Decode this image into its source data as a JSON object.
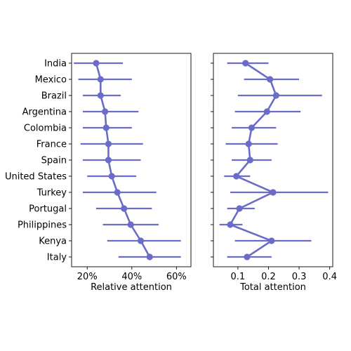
{
  "chart_data": [
    {
      "type": "line",
      "title": "",
      "xlabel": "Relative attention",
      "ylabel": "",
      "xlim": [
        0.13,
        0.665
      ],
      "xticks": [
        {
          "value": 0.2,
          "label": "20%"
        },
        {
          "value": 0.4,
          "label": "40%"
        },
        {
          "value": 0.6,
          "label": "60%"
        }
      ],
      "categories": [
        "India",
        "Mexico",
        "Brazil",
        "Argentina",
        "Colombia",
        "France",
        "Spain",
        "United States",
        "Turkey",
        "Portugal",
        "Philippines",
        "Kenya",
        "Italy"
      ],
      "values": [
        0.24,
        0.26,
        0.26,
        0.28,
        0.285,
        0.295,
        0.295,
        0.31,
        0.335,
        0.365,
        0.395,
        0.44,
        0.48
      ],
      "ci_low": [
        0.14,
        0.16,
        0.18,
        0.18,
        0.18,
        0.17,
        0.18,
        0.2,
        0.18,
        0.24,
        0.27,
        0.29,
        0.34
      ],
      "ci_high": [
        0.36,
        0.4,
        0.35,
        0.43,
        0.4,
        0.45,
        0.44,
        0.42,
        0.51,
        0.49,
        0.52,
        0.62,
        0.62
      ],
      "grid": false
    },
    {
      "type": "line",
      "title": "",
      "xlabel": "Total attention",
      "ylabel": "",
      "xlim": [
        0.02,
        0.41
      ],
      "xticks": [
        {
          "value": 0.1,
          "label": "0.1"
        },
        {
          "value": 0.2,
          "label": "0.2"
        },
        {
          "value": 0.3,
          "label": "0.3"
        },
        {
          "value": 0.4,
          "label": "0.4"
        }
      ],
      "categories": [
        "India",
        "Mexico",
        "Brazil",
        "Argentina",
        "Colombia",
        "France",
        "Spain",
        "United States",
        "Turkey",
        "Portugal",
        "Philippines",
        "Kenya",
        "Italy"
      ],
      "values": [
        0.125,
        0.205,
        0.225,
        0.195,
        0.145,
        0.135,
        0.14,
        0.095,
        0.215,
        0.105,
        0.075,
        0.21,
        0.13
      ],
      "ci_low": [
        0.065,
        0.12,
        0.1,
        0.09,
        0.08,
        0.06,
        0.08,
        0.055,
        0.075,
        0.065,
        0.04,
        0.09,
        0.065
      ],
      "ci_high": [
        0.2,
        0.3,
        0.375,
        0.305,
        0.225,
        0.23,
        0.21,
        0.14,
        0.395,
        0.155,
        0.115,
        0.34,
        0.21
      ],
      "grid": false
    }
  ],
  "style": {
    "series_color": "#6b6cc7"
  }
}
